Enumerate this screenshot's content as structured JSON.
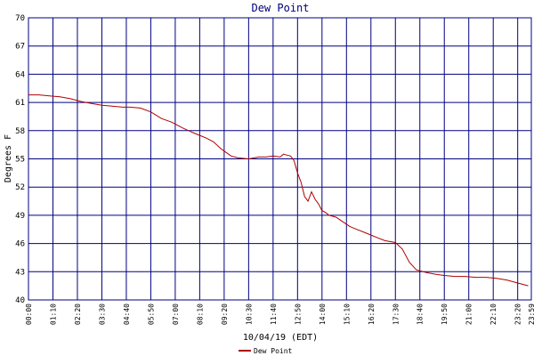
{
  "chart_data": {
    "type": "line",
    "title": "Dew Point",
    "xlabel": "10/04/19 (EDT)",
    "ylabel": "Degrees F",
    "ylim": [
      40,
      70
    ],
    "yticks": [
      "40",
      "43",
      "46",
      "49",
      "52",
      "55",
      "58",
      "61",
      "64",
      "67",
      "70"
    ],
    "xticks": [
      "00:00",
      "01:10",
      "02:20",
      "03:30",
      "04:40",
      "05:50",
      "07:00",
      "08:10",
      "09:20",
      "10:30",
      "11:40",
      "12:50",
      "14:00",
      "15:10",
      "16:20",
      "17:30",
      "18:40",
      "19:50",
      "21:00",
      "22:10",
      "23:20",
      "23:59"
    ],
    "grid": true,
    "legend_position": "bottom-center",
    "colors": {
      "series": "#b00000",
      "grid": "#000080",
      "title": "#00007a"
    },
    "series": [
      {
        "name": "Dew Point",
        "x": [
          "00:00",
          "00:30",
          "01:00",
          "01:30",
          "02:00",
          "02:30",
          "03:00",
          "03:30",
          "04:00",
          "04:30",
          "04:50",
          "05:20",
          "05:50",
          "06:20",
          "06:50",
          "07:20",
          "07:50",
          "08:10",
          "08:30",
          "08:50",
          "09:10",
          "09:40",
          "10:00",
          "10:30",
          "11:00",
          "11:20",
          "11:40",
          "12:00",
          "12:10",
          "12:20",
          "12:30",
          "12:40",
          "12:50",
          "13:00",
          "13:10",
          "13:20",
          "13:30",
          "13:40",
          "13:50",
          "14:00",
          "14:10",
          "14:20",
          "14:40",
          "15:00",
          "15:20",
          "15:40",
          "16:00",
          "16:20",
          "16:40",
          "17:00",
          "17:30",
          "17:50",
          "18:10",
          "18:30",
          "18:50",
          "19:00",
          "19:30",
          "19:50",
          "20:20",
          "20:50",
          "21:20",
          "21:50",
          "22:20",
          "22:50",
          "23:20",
          "23:50"
        ],
        "values": [
          61.8,
          61.8,
          61.7,
          61.6,
          61.4,
          61.1,
          60.9,
          60.7,
          60.6,
          60.5,
          60.5,
          60.4,
          60.0,
          59.3,
          58.9,
          58.3,
          57.8,
          57.5,
          57.2,
          56.8,
          56.1,
          55.3,
          55.1,
          55.0,
          55.2,
          55.2,
          55.3,
          55.2,
          55.5,
          55.4,
          55.3,
          54.8,
          53.5,
          52.5,
          51.0,
          50.5,
          51.5,
          50.7,
          50.2,
          49.5,
          49.3,
          49.0,
          48.8,
          48.3,
          47.8,
          47.5,
          47.2,
          46.9,
          46.6,
          46.3,
          46.1,
          45.4,
          44.0,
          43.2,
          43.0,
          42.9,
          42.7,
          42.6,
          42.5,
          42.5,
          42.4,
          42.4,
          42.3,
          42.1,
          41.8,
          41.5
        ]
      }
    ]
  }
}
